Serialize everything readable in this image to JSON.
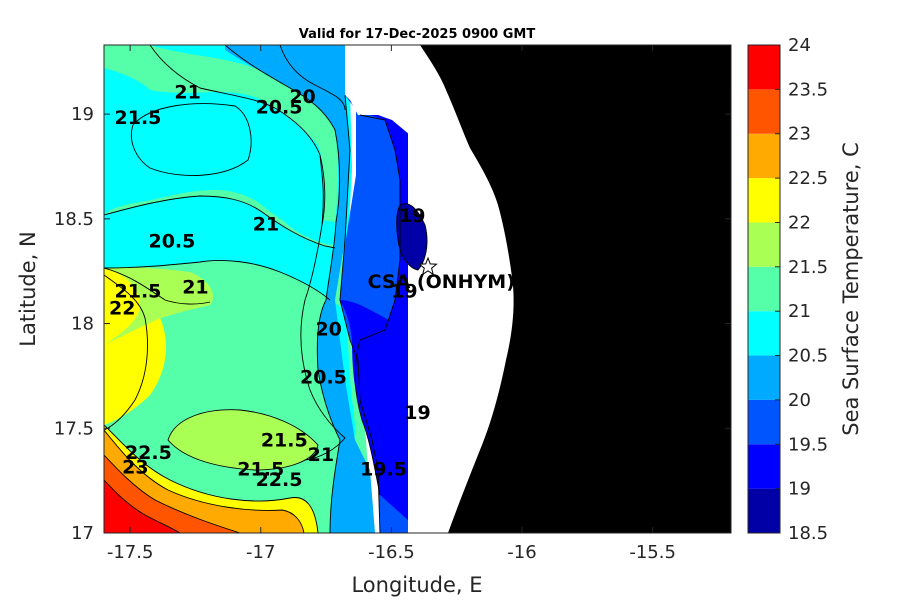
{
  "chart_data": {
    "type": "heatmap",
    "subtype": "filled-contour-map",
    "title": "Valid for 17-Dec-2025 0900 GMT",
    "xlabel": "Longitude, E",
    "ylabel": "Latitude, N",
    "xlim": [
      -17.6,
      -15.2
    ],
    "ylim": [
      17.0,
      19.33
    ],
    "x_ticks": [
      -17.5,
      -17,
      -16.5,
      -16,
      -15.5
    ],
    "y_ticks": [
      17,
      17.5,
      18,
      18.5,
      19
    ],
    "x_tick_labels": [
      "-17.5",
      "-17",
      "-16.5",
      "-16",
      "-15.5"
    ],
    "y_tick_labels": [
      "17",
      "17.5",
      "18",
      "18.5",
      "19"
    ],
    "colorbar": {
      "label": "Sea Surface Temperature, C",
      "ticks": [
        18.5,
        19,
        19.5,
        20,
        20.5,
        21,
        21.5,
        22,
        22.5,
        23,
        23.5,
        24
      ],
      "tick_labels": [
        "18.5",
        "19",
        "19.5",
        "20",
        "20.5",
        "21",
        "21.5",
        "22",
        "22.5",
        "23",
        "23.5",
        "24"
      ],
      "bands": [
        {
          "min": 18.5,
          "max": 19.0,
          "color": "#0000a6"
        },
        {
          "min": 19.0,
          "max": 19.5,
          "color": "#0000ff"
        },
        {
          "min": 19.5,
          "max": 20.0,
          "color": "#0055ff"
        },
        {
          "min": 20.0,
          "max": 20.5,
          "color": "#00aaff"
        },
        {
          "min": 20.5,
          "max": 21.0,
          "color": "#00ffff"
        },
        {
          "min": 21.0,
          "max": 21.5,
          "color": "#55ffaa"
        },
        {
          "min": 21.5,
          "max": 22.0,
          "color": "#aaff55"
        },
        {
          "min": 22.0,
          "max": 22.5,
          "color": "#ffff00"
        },
        {
          "min": 22.5,
          "max": 23.0,
          "color": "#ffaa00"
        },
        {
          "min": 23.0,
          "max": 23.5,
          "color": "#ff5500"
        },
        {
          "min": 23.5,
          "max": 24.0,
          "color": "#ff0000"
        }
      ]
    },
    "land_color": "#000000",
    "no_data_color": "#ffffff",
    "contour_labels": [
      {
        "text": "21",
        "lon": -17.28,
        "lat": 19.1
      },
      {
        "text": "21.5",
        "lon": -17.47,
        "lat": 18.98
      },
      {
        "text": "20.5",
        "lon": -16.93,
        "lat": 19.03
      },
      {
        "text": "20",
        "lon": -16.84,
        "lat": 19.08
      },
      {
        "text": "19",
        "lon": -16.42,
        "lat": 18.51
      },
      {
        "text": "21",
        "lon": -16.98,
        "lat": 18.47
      },
      {
        "text": "20.5",
        "lon": -17.34,
        "lat": 18.39
      },
      {
        "text": "21.5",
        "lon": -17.47,
        "lat": 18.15
      },
      {
        "text": "21",
        "lon": -17.25,
        "lat": 18.17
      },
      {
        "text": "22",
        "lon": -17.53,
        "lat": 18.07
      },
      {
        "text": "19",
        "lon": -16.45,
        "lat": 18.15
      },
      {
        "text": "20",
        "lon": -16.74,
        "lat": 17.97
      },
      {
        "text": "20.5",
        "lon": -16.76,
        "lat": 17.74
      },
      {
        "text": "19",
        "lon": -16.4,
        "lat": 17.57
      },
      {
        "text": "21.5",
        "lon": -16.91,
        "lat": 17.44
      },
      {
        "text": "21",
        "lon": -16.77,
        "lat": 17.37
      },
      {
        "text": "22.5",
        "lon": -17.43,
        "lat": 17.38
      },
      {
        "text": "23",
        "lon": -17.48,
        "lat": 17.31
      },
      {
        "text": "21.5",
        "lon": -17.0,
        "lat": 17.3
      },
      {
        "text": "22.5",
        "lon": -16.93,
        "lat": 17.25
      },
      {
        "text": "19.5",
        "lon": -16.53,
        "lat": 17.3
      }
    ],
    "station": {
      "label": "CSA (ONHYM) FPL EBS",
      "lon": -16.36,
      "lat": 18.27,
      "marker": "star"
    }
  }
}
